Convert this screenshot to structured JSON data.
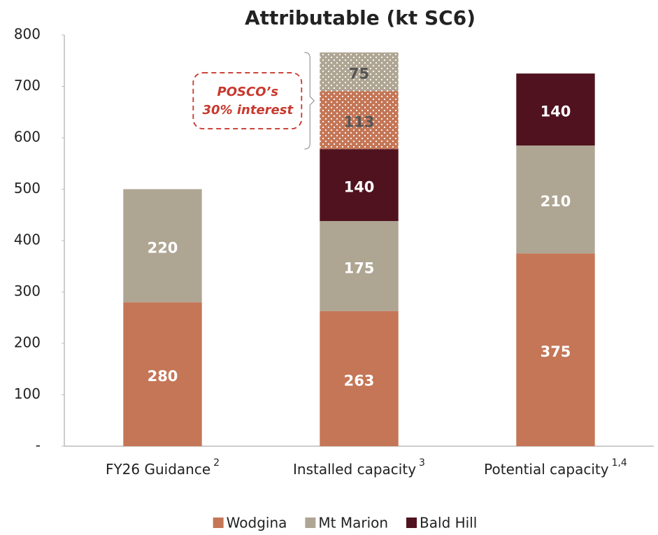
{
  "chart_data": {
    "type": "stacked_bar",
    "title": "Attributable (kt SC6)",
    "categories": [
      "FY26 Guidance",
      "Installed capacity",
      "Potential capacity"
    ],
    "category_notes": [
      "2",
      "3",
      "1,4"
    ],
    "series": [
      {
        "name": "Wodgina",
        "color": "#c47656",
        "values": [
          280,
          263,
          375
        ]
      },
      {
        "name": "Mt Marion",
        "color": "#afa593",
        "values": [
          220,
          175,
          210
        ]
      },
      {
        "name": "Bald Hill",
        "color": "#4f121e",
        "values": [
          null,
          140,
          140
        ]
      }
    ],
    "annotation_series": [
      {
        "color": "#c47656",
        "values": [
          null,
          113,
          null
        ]
      },
      {
        "color": "#afa593",
        "values": [
          null,
          75,
          null
        ]
      }
    ],
    "annotation": [
      "POSCO’s",
      "30% interest"
    ],
    "ylim": [
      0,
      800
    ],
    "yticks": [
      {
        "value": 0,
        "label": "-"
      },
      100,
      200,
      300,
      400,
      500,
      600,
      700,
      800
    ],
    "legend": "bottom"
  }
}
